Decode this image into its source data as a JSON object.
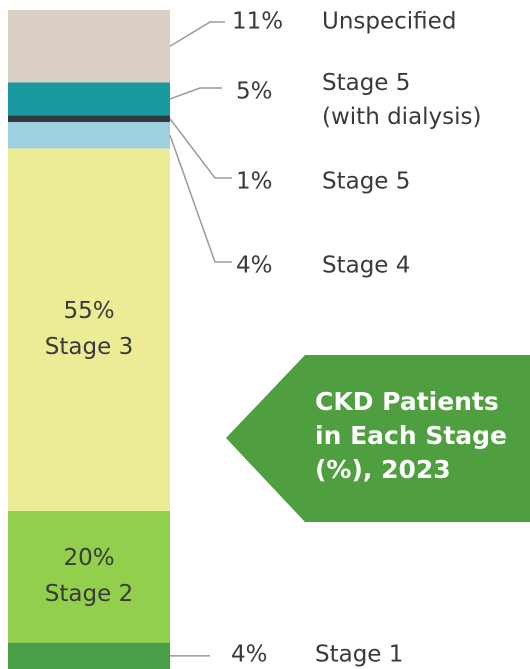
{
  "chart_data": {
    "type": "stacked-bar",
    "title": "CKD Patients\nin Each Stage\n(%), 2023",
    "categories": [
      "Stage 1",
      "Stage 2",
      "Stage 3",
      "Stage 4",
      "Stage 5",
      "Stage 5\n(with dialysis)",
      "Unspecified"
    ],
    "values": [
      4,
      20,
      55,
      4,
      1,
      5,
      11
    ],
    "value_labels": [
      "4%",
      "20%",
      "55%",
      "4%",
      "1%",
      "5%",
      "11%"
    ],
    "colors": [
      "#4a9e45",
      "#92cf4c",
      "#ecec96",
      "#9fd0e0",
      "#333a3e",
      "#1a9aa0",
      "#d9cfc4"
    ],
    "title_color": "#4f9e3f",
    "ylim": [
      0,
      100
    ]
  }
}
